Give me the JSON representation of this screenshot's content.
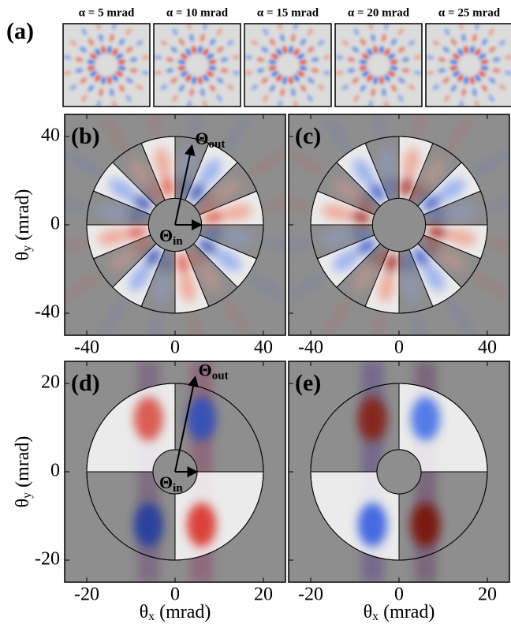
{
  "panels": {
    "a": {
      "label": "(a)",
      "titles": [
        "α = 5 mrad",
        "α = 10 mrad",
        "α = 15 mrad",
        "α = 20 mrad",
        "α = 25 mrad"
      ]
    },
    "b": {
      "label": "(b)",
      "xlim": [
        -50,
        50
      ],
      "ylim": [
        -50,
        50
      ],
      "xticks": [
        -40,
        0,
        40
      ],
      "yticks": [
        40,
        0,
        -40
      ],
      "arrows": {
        "symbol": "Θ",
        "out": "out",
        "in": "in"
      },
      "ylabel": {
        "symbol": "θ",
        "sub": "y",
        "unit": "(mrad)"
      }
    },
    "c": {
      "label": "(c)",
      "xlim": [
        -50,
        50
      ],
      "ylim": [
        -50,
        50
      ],
      "xticks": [
        -40,
        0,
        40
      ]
    },
    "d": {
      "label": "(d)",
      "xlim": [
        -25,
        25
      ],
      "ylim": [
        -25,
        25
      ],
      "xticks": [
        -20,
        0,
        20
      ],
      "yticks": [
        20,
        0,
        -20
      ],
      "arrows": {
        "symbol": "Θ",
        "out": "out",
        "in": "in"
      },
      "ylabel": {
        "symbol": "θ",
        "sub": "y",
        "unit": "(mrad)"
      },
      "xlabel": {
        "symbol": "θ",
        "sub": "x",
        "unit": "(mrad)"
      }
    },
    "e": {
      "label": "(e)",
      "xlim": [
        -25,
        25
      ],
      "ylim": [
        -25,
        25
      ],
      "xticks": [
        -20,
        0,
        20
      ],
      "xlabel": {
        "symbol": "θ",
        "sub": "x",
        "unit": "(mrad)"
      }
    }
  }
}
